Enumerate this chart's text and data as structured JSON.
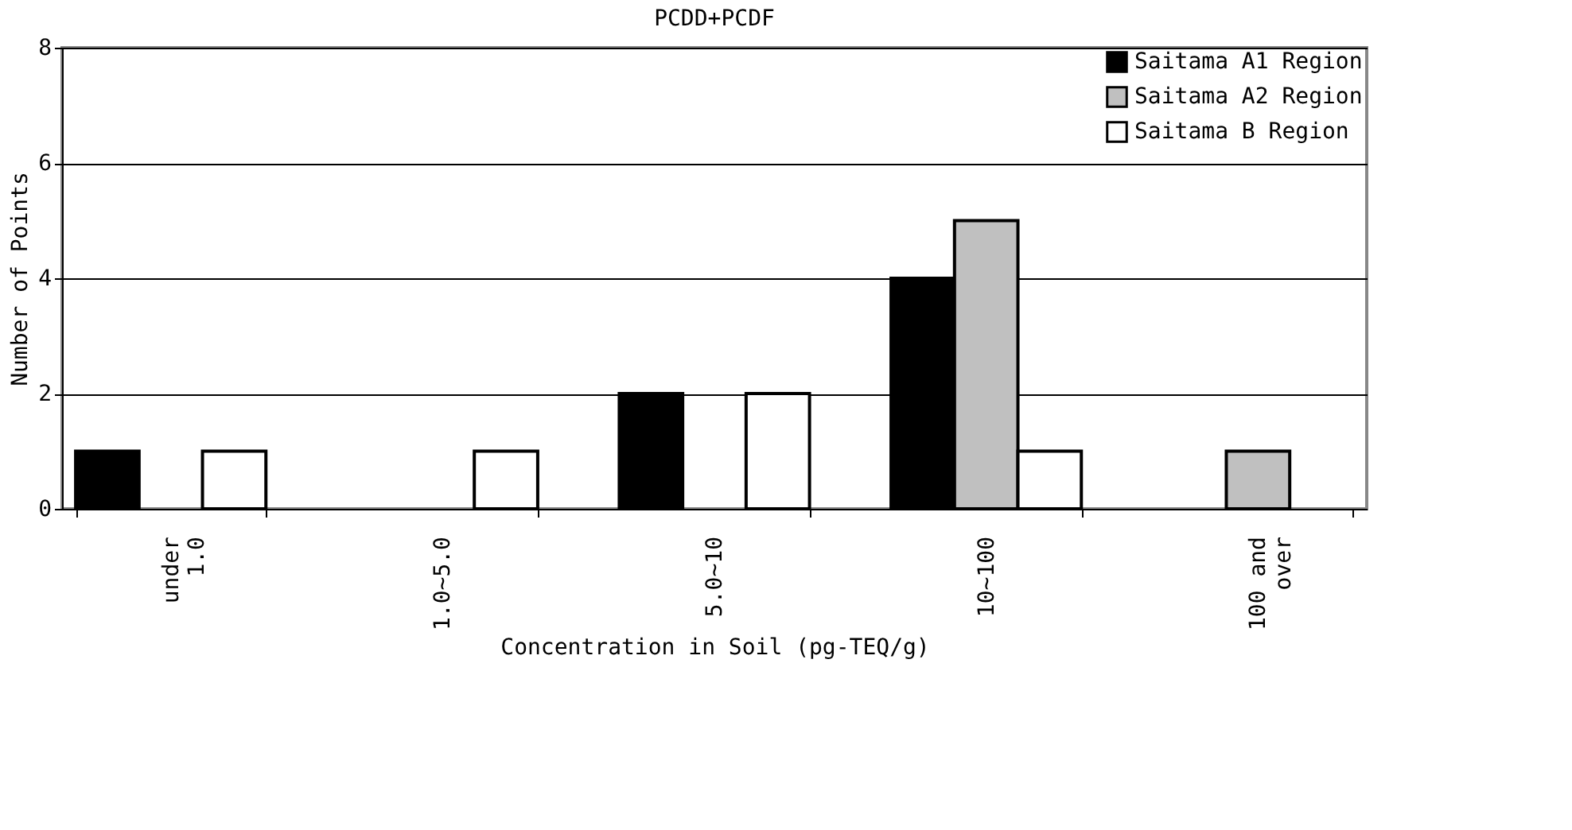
{
  "chart_data": {
    "type": "bar",
    "title": "PCDD+PCDF",
    "xlabel": "Concentration in Soil (pg-TEQ/g)",
    "ylabel": "Number of Points",
    "categories": [
      "under\n1.0",
      "1.0~5.0",
      "5.0~10",
      "10~100",
      "100 and\nover"
    ],
    "series": [
      {
        "name": "Saitama A1 Region",
        "color": "#000000",
        "values": [
          1,
          0,
          2,
          4,
          0
        ]
      },
      {
        "name": "Saitama A2 Region",
        "color": "#c0c0c0",
        "values": [
          0,
          0,
          0,
          5,
          1
        ]
      },
      {
        "name": "Saitama B Region",
        "color": "#ffffff",
        "values": [
          1,
          1,
          2,
          1,
          0
        ]
      }
    ],
    "ylim": [
      0,
      8
    ],
    "yticks": [
      0,
      2,
      4,
      6,
      8
    ],
    "grid": "y",
    "legend": "top right"
  }
}
